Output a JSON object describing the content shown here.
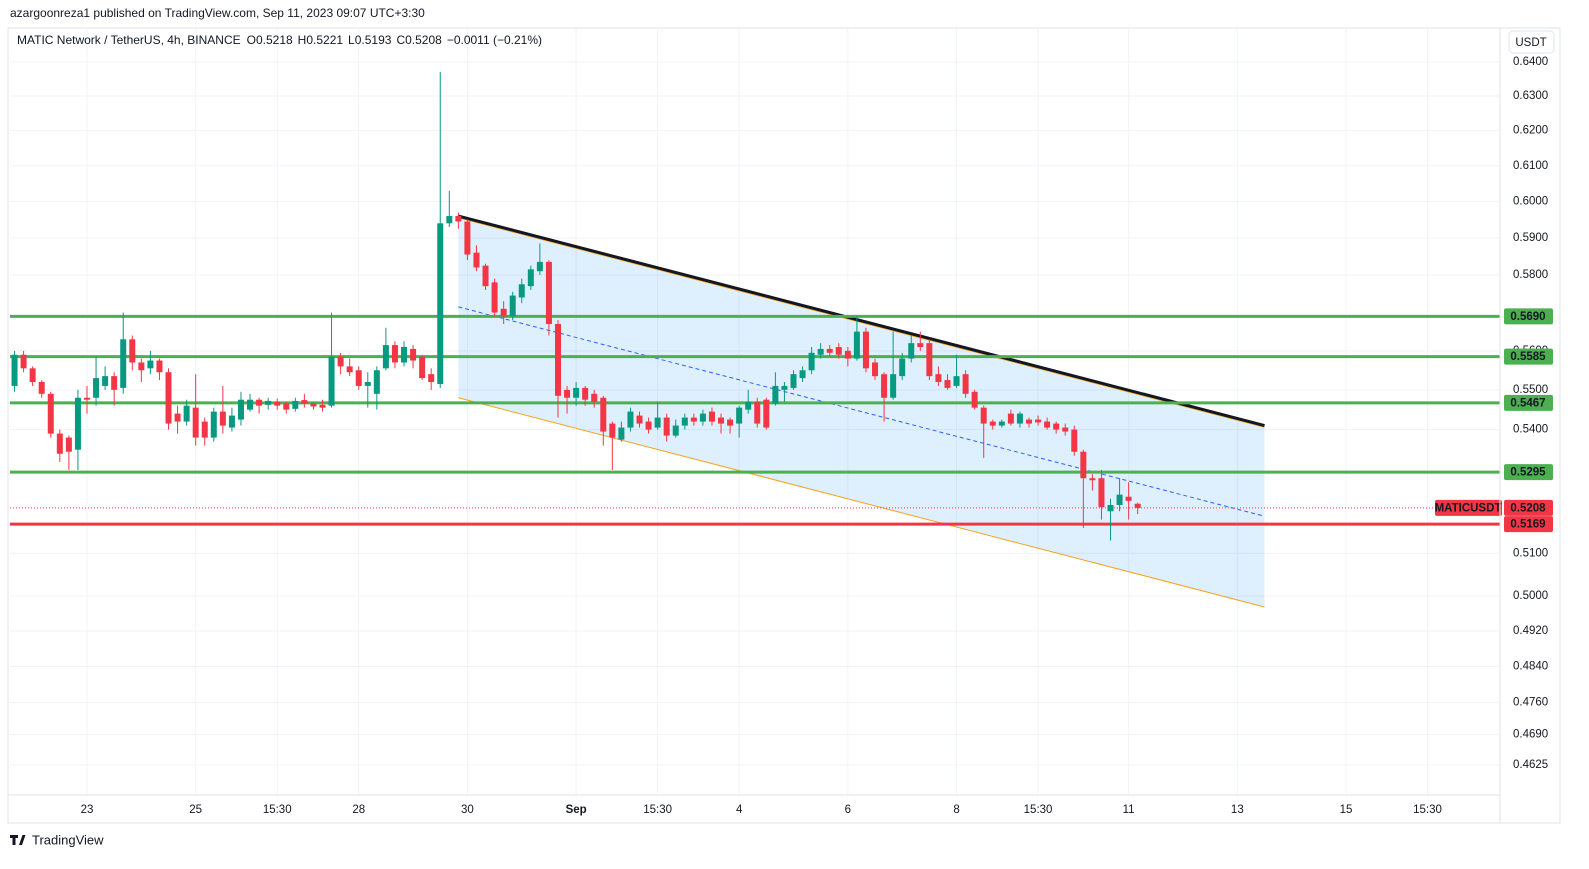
{
  "header": {
    "published": "azargoonreza1 published on TradingView.com, Sep 11, 2023 09:07 UTC+3:30",
    "symbol": "MATIC Network / TetherUS, 4h, BINANCE",
    "ohlc": [
      {
        "key": "O",
        "value": 0.5218
      },
      {
        "key": "H",
        "value": 0.5221
      },
      {
        "key": "L",
        "value": 0.5193
      },
      {
        "key": "C",
        "value": 0.5208
      }
    ],
    "change": "−0.0011 (−0.21%)"
  },
  "currency_button": "USDT",
  "footer": "TradingView",
  "chart_data": {
    "type": "candlestick",
    "log_scale": true,
    "grid": true,
    "up_color": "#089981",
    "down_color": "#f23645",
    "xlim": [
      -0.5,
      164
    ],
    "ylim": [
      0.4561,
      0.6495
    ],
    "xticks": [
      {
        "value": 8,
        "label": "23"
      },
      {
        "value": 20,
        "label": "25"
      },
      {
        "value": 29,
        "label": "15:30"
      },
      {
        "value": 38,
        "label": "28"
      },
      {
        "value": 50,
        "label": "30"
      },
      {
        "value": 62,
        "label": "Sep"
      },
      {
        "value": 71,
        "label": "15:30"
      },
      {
        "value": 80,
        "label": "4"
      },
      {
        "value": 92,
        "label": "6"
      },
      {
        "value": 104,
        "label": "8"
      },
      {
        "value": 113,
        "label": "15:30"
      },
      {
        "value": 123,
        "label": "11"
      },
      {
        "value": 135,
        "label": "13"
      },
      {
        "value": 147,
        "label": "15"
      },
      {
        "value": 156,
        "label": "15:30"
      }
    ],
    "yticks": [
      {
        "value": 0.64,
        "label": "0.6400"
      },
      {
        "value": 0.63,
        "label": "0.6300"
      },
      {
        "value": 0.62,
        "label": "0.6200"
      },
      {
        "value": 0.61,
        "label": "0.6100"
      },
      {
        "value": 0.6,
        "label": "0.6000"
      },
      {
        "value": 0.59,
        "label": "0.5900"
      },
      {
        "value": 0.58,
        "label": "0.5800"
      },
      {
        "value": 0.56,
        "label": "0.5600"
      },
      {
        "value": 0.55,
        "label": "0.5500"
      },
      {
        "value": 0.54,
        "label": "0.5400"
      },
      {
        "value": 0.51,
        "label": "0.5100"
      },
      {
        "value": 0.5,
        "label": "0.5000"
      },
      {
        "value": 0.492,
        "label": "0.4920"
      },
      {
        "value": 0.484,
        "label": "0.4840"
      },
      {
        "value": 0.476,
        "label": "0.4760"
      },
      {
        "value": 0.469,
        "label": "0.4690"
      },
      {
        "value": 0.4625,
        "label": "0.4625"
      }
    ],
    "open": [
      0.551,
      0.559,
      0.5555,
      0.552,
      0.549,
      0.539,
      0.538,
      0.535,
      0.548,
      0.548,
      0.551,
      0.5535,
      0.5505,
      0.563,
      0.557,
      0.5555,
      0.5575,
      0.5545,
      0.544,
      0.542,
      0.5455,
      0.542,
      0.538,
      0.5445,
      0.5405,
      0.5425,
      0.545,
      0.5475,
      0.5462,
      0.547,
      0.5465,
      0.5452,
      0.5474,
      0.5465,
      0.5462,
      0.546,
      0.5585,
      0.556,
      0.555,
      0.551,
      0.549,
      0.5555,
      0.5615,
      0.557,
      0.5605,
      0.5585,
      0.554,
      0.5515,
      0.594,
      0.596,
      0.5945,
      0.586,
      0.5825,
      0.578,
      0.571,
      0.569,
      0.574,
      0.577,
      0.581,
      0.5835,
      0.567,
      0.55,
      0.548,
      0.5505,
      0.549,
      0.548,
      0.5415,
      0.5375,
      0.5405,
      0.5435,
      0.542,
      0.5405,
      0.543,
      0.5385,
      0.541,
      0.543,
      0.542,
      0.5445,
      0.543,
      0.5425,
      0.5415,
      0.545,
      0.547,
      0.5475,
      0.5465,
      0.55,
      0.5505,
      0.553,
      0.555,
      0.559,
      0.5605,
      0.561,
      0.56,
      0.558,
      0.565,
      0.557,
      0.554,
      0.548,
      0.5535,
      0.558,
      0.562,
      0.562,
      0.554,
      0.5525,
      0.551,
      0.554,
      0.5495,
      0.5455,
      0.542,
      0.541,
      0.544,
      0.5415,
      0.5425,
      0.5425,
      0.542,
      0.5415,
      0.5405,
      0.54,
      0.5345,
      0.528,
      0.528,
      0.52,
      0.5215,
      0.5235,
      0.5218
    ],
    "high": [
      0.56,
      0.56,
      0.556,
      0.5525,
      0.5495,
      0.54,
      0.5385,
      0.55,
      0.551,
      0.5585,
      0.556,
      0.5545,
      0.57,
      0.564,
      0.558,
      0.56,
      0.558,
      0.5555,
      0.546,
      0.5475,
      0.554,
      0.543,
      0.5455,
      0.551,
      0.5455,
      0.5495,
      0.549,
      0.548,
      0.548,
      0.5478,
      0.547,
      0.548,
      0.549,
      0.547,
      0.5475,
      0.57,
      0.5595,
      0.558,
      0.556,
      0.5545,
      0.556,
      0.566,
      0.5625,
      0.5625,
      0.5615,
      0.559,
      0.5555,
      0.637,
      0.603,
      0.597,
      0.595,
      0.588,
      0.583,
      0.579,
      0.573,
      0.5755,
      0.579,
      0.5825,
      0.5885,
      0.584,
      0.568,
      0.551,
      0.552,
      0.551,
      0.55,
      0.5485,
      0.542,
      0.542,
      0.5455,
      0.5445,
      0.543,
      0.547,
      0.544,
      0.5425,
      0.544,
      0.544,
      0.545,
      0.5455,
      0.544,
      0.543,
      0.546,
      0.55,
      0.548,
      0.548,
      0.5545,
      0.552,
      0.555,
      0.556,
      0.561,
      0.562,
      0.5615,
      0.562,
      0.561,
      0.569,
      0.566,
      0.558,
      0.5545,
      0.565,
      0.5595,
      0.564,
      0.565,
      0.563,
      0.556,
      0.554,
      0.559,
      0.555,
      0.55,
      0.546,
      0.5425,
      0.5425,
      0.545,
      0.5445,
      0.543,
      0.5435,
      0.543,
      0.542,
      0.5415,
      0.541,
      0.535,
      0.529,
      0.53,
      0.523,
      0.528,
      0.527,
      0.5221
    ],
    "low": [
      0.5495,
      0.5545,
      0.551,
      0.548,
      0.538,
      0.532,
      0.53,
      0.53,
      0.544,
      0.546,
      0.55,
      0.546,
      0.549,
      0.555,
      0.552,
      0.554,
      0.5525,
      0.54,
      0.539,
      0.541,
      0.536,
      0.536,
      0.537,
      0.539,
      0.5395,
      0.541,
      0.5445,
      0.544,
      0.545,
      0.545,
      0.544,
      0.5445,
      0.5455,
      0.545,
      0.5445,
      0.5455,
      0.554,
      0.5535,
      0.55,
      0.5455,
      0.545,
      0.555,
      0.5555,
      0.556,
      0.5555,
      0.5525,
      0.55,
      0.5505,
      0.593,
      0.5925,
      0.584,
      0.581,
      0.576,
      0.569,
      0.567,
      0.568,
      0.5725,
      0.576,
      0.58,
      0.564,
      0.543,
      0.544,
      0.546,
      0.546,
      0.5455,
      0.536,
      0.53,
      0.537,
      0.5395,
      0.5405,
      0.539,
      0.54,
      0.537,
      0.538,
      0.54,
      0.541,
      0.541,
      0.541,
      0.539,
      0.539,
      0.538,
      0.544,
      0.5405,
      0.54,
      0.546,
      0.547,
      0.55,
      0.552,
      0.554,
      0.558,
      0.5585,
      0.558,
      0.556,
      0.5575,
      0.5545,
      0.5525,
      0.542,
      0.5475,
      0.5525,
      0.557,
      0.56,
      0.5525,
      0.551,
      0.55,
      0.5505,
      0.548,
      0.545,
      0.533,
      0.54,
      0.5405,
      0.541,
      0.5405,
      0.5405,
      0.541,
      0.54,
      0.539,
      0.5385,
      0.5335,
      0.516,
      0.525,
      0.518,
      0.513,
      0.52,
      0.518,
      0.5193
    ],
    "close": [
      0.559,
      0.5555,
      0.552,
      0.549,
      0.539,
      0.534,
      0.5345,
      0.548,
      0.5475,
      0.553,
      0.5535,
      0.55,
      0.563,
      0.557,
      0.555,
      0.5575,
      0.5545,
      0.5415,
      0.542,
      0.546,
      0.538,
      0.538,
      0.5445,
      0.541,
      0.5435,
      0.5475,
      0.5475,
      0.546,
      0.5472,
      0.546,
      0.545,
      0.5472,
      0.5465,
      0.5458,
      0.5455,
      0.5585,
      0.556,
      0.5545,
      0.551,
      0.552,
      0.555,
      0.5615,
      0.557,
      0.561,
      0.5575,
      0.553,
      0.552,
      0.594,
      0.596,
      0.5945,
      0.5855,
      0.582,
      0.577,
      0.57,
      0.569,
      0.5745,
      0.5775,
      0.5815,
      0.5835,
      0.567,
      0.5485,
      0.548,
      0.5505,
      0.5475,
      0.547,
      0.5395,
      0.538,
      0.5405,
      0.5445,
      0.5415,
      0.54,
      0.543,
      0.5385,
      0.541,
      0.543,
      0.542,
      0.544,
      0.542,
      0.5415,
      0.541,
      0.5455,
      0.547,
      0.5415,
      0.5405,
      0.551,
      0.551,
      0.554,
      0.555,
      0.5595,
      0.5605,
      0.5595,
      0.559,
      0.558,
      0.565,
      0.5555,
      0.5535,
      0.548,
      0.554,
      0.558,
      0.562,
      0.561,
      0.5535,
      0.552,
      0.5505,
      0.5535,
      0.549,
      0.5455,
      0.5415,
      0.541,
      0.542,
      0.5415,
      0.544,
      0.5415,
      0.5418,
      0.5405,
      0.54,
      0.5395,
      0.5345,
      0.528,
      0.5275,
      0.521,
      0.5215,
      0.524,
      0.5225,
      0.5208
    ],
    "levels": [
      {
        "value": 0.569,
        "label": "0.5690",
        "color": "#4caf50"
      },
      {
        "value": 0.5585,
        "label": "0.5585",
        "color": "#4caf50"
      },
      {
        "value": 0.5467,
        "label": "0.5467",
        "color": "#4caf50"
      },
      {
        "value": 0.5295,
        "label": "0.5295",
        "color": "#4caf50"
      },
      {
        "value": 0.5169,
        "label": "0.5169",
        "color": "#f23645"
      }
    ],
    "last_price": {
      "name": "MATICUSDT",
      "value": 0.5208,
      "label": "0.5208",
      "color": "#f23645"
    },
    "channel": {
      "x": [
        49,
        138
      ],
      "upper": [
        0.596,
        0.541
      ],
      "lower": [
        0.548,
        0.4975
      ]
    }
  }
}
